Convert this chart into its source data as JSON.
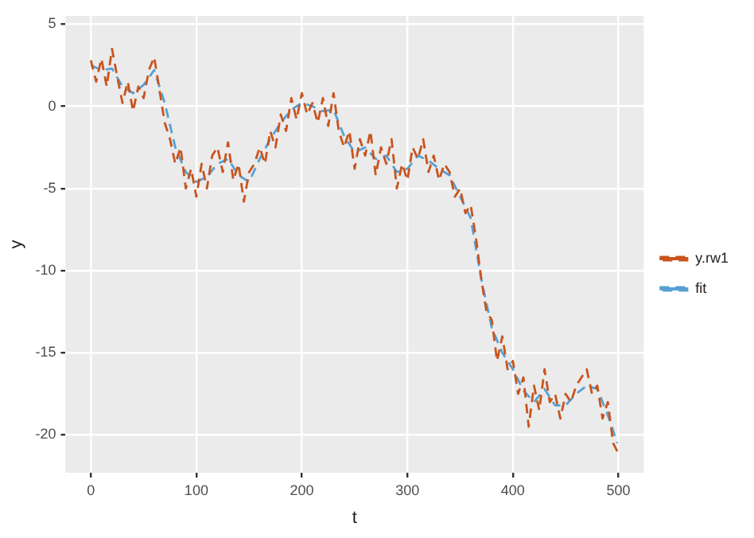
{
  "chart_data": {
    "type": "line",
    "xlabel": "t",
    "ylabel": "y",
    "xlim": [
      -24,
      524
    ],
    "ylim": [
      -22.3,
      5.5
    ],
    "xticks": [
      0,
      100,
      200,
      300,
      400,
      500
    ],
    "yticks": [
      -20,
      -15,
      -10,
      -5,
      0,
      5
    ],
    "grid": true,
    "legend": "right",
    "line_style": "dashed",
    "marker": "none",
    "series": [
      {
        "name": "y.rw1",
        "color": "#c9541d",
        "x": [
          0,
          5,
          10,
          15,
          20,
          25,
          30,
          35,
          40,
          45,
          50,
          55,
          60,
          65,
          70,
          75,
          80,
          85,
          90,
          95,
          100,
          105,
          110,
          115,
          120,
          125,
          130,
          135,
          140,
          145,
          150,
          155,
          160,
          165,
          170,
          175,
          180,
          185,
          190,
          195,
          200,
          205,
          210,
          215,
          220,
          225,
          230,
          235,
          240,
          245,
          250,
          255,
          260,
          265,
          270,
          275,
          280,
          285,
          290,
          295,
          300,
          305,
          310,
          315,
          320,
          325,
          330,
          335,
          340,
          345,
          350,
          355,
          360,
          365,
          370,
          375,
          380,
          385,
          390,
          395,
          400,
          405,
          410,
          415,
          420,
          425,
          430,
          435,
          440,
          445,
          450,
          455,
          460,
          465,
          470,
          475,
          480,
          485,
          490,
          495,
          499
        ],
        "values": [
          2.8,
          1.5,
          2.9,
          1.2,
          3.5,
          1.8,
          0.2,
          1.5,
          -0.3,
          1.2,
          0.5,
          2.2,
          3.0,
          1.0,
          -1.0,
          -2.0,
          -3.5,
          -2.5,
          -5.0,
          -3.8,
          -5.5,
          -3.5,
          -5.0,
          -3.0,
          -2.5,
          -4.0,
          -2.2,
          -4.5,
          -3.5,
          -5.8,
          -4.0,
          -3.5,
          -2.5,
          -3.5,
          -1.5,
          -2.5,
          -0.5,
          -1.5,
          0.5,
          -0.8,
          0.8,
          -0.5,
          0.2,
          -1.0,
          0.5,
          -1.2,
          0.8,
          -1.5,
          -2.5,
          -1.5,
          -3.8,
          -2.0,
          -3.0,
          -1.5,
          -4.2,
          -2.5,
          -3.5,
          -2.0,
          -5.0,
          -3.5,
          -4.5,
          -2.5,
          -3.2,
          -2.0,
          -4.0,
          -3.0,
          -4.5,
          -3.5,
          -4.0,
          -5.5,
          -5.0,
          -6.5,
          -6.0,
          -8.0,
          -10.5,
          -12.5,
          -13.0,
          -15.5,
          -14.0,
          -16.0,
          -15.5,
          -17.5,
          -16.5,
          -19.5,
          -17.0,
          -18.5,
          -16.0,
          -18.0,
          -17.5,
          -19.0,
          -17.5,
          -18.0,
          -17.0,
          -16.5,
          -16.0,
          -17.5,
          -17.0,
          -19.0,
          -18.0,
          -20.5,
          -21.0
        ]
      },
      {
        "name": "fit",
        "color": "#56a0d3",
        "x": [
          0,
          10,
          20,
          30,
          40,
          50,
          60,
          70,
          80,
          90,
          100,
          110,
          120,
          130,
          140,
          150,
          160,
          170,
          180,
          190,
          200,
          210,
          220,
          230,
          240,
          250,
          260,
          270,
          280,
          290,
          300,
          310,
          320,
          330,
          340,
          350,
          360,
          370,
          380,
          390,
          400,
          410,
          420,
          430,
          440,
          450,
          460,
          470,
          480,
          490,
          499
        ],
        "values": [
          2.5,
          2.2,
          2.3,
          1.2,
          0.8,
          1.3,
          2.2,
          0.2,
          -2.5,
          -4.0,
          -4.6,
          -4.3,
          -3.5,
          -3.2,
          -4.2,
          -4.6,
          -3.2,
          -2.0,
          -1.0,
          -0.2,
          0.2,
          0.0,
          -0.3,
          -0.2,
          -1.8,
          -2.8,
          -2.5,
          -3.2,
          -3.0,
          -4.0,
          -3.8,
          -3.0,
          -3.3,
          -3.8,
          -4.2,
          -5.5,
          -6.8,
          -10.5,
          -13.5,
          -15.0,
          -16.0,
          -17.3,
          -18.0,
          -17.2,
          -18.2,
          -18.2,
          -17.5,
          -17.0,
          -17.2,
          -18.8,
          -20.5
        ]
      }
    ]
  }
}
